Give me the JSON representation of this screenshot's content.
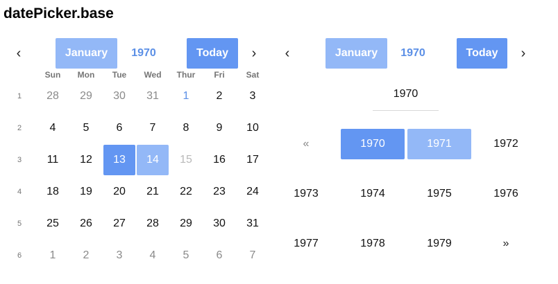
{
  "page": {
    "title": "datePicker.base"
  },
  "left": {
    "prev": "‹",
    "next": "›",
    "month": "January",
    "year": "1970",
    "today": "Today",
    "weekdays": [
      "Sun",
      "Mon",
      "Tue",
      "Wed",
      "Thur",
      "Fri",
      "Sat"
    ],
    "weeks": [
      "1",
      "2",
      "3",
      "4",
      "5",
      "6"
    ],
    "days": [
      "28",
      "29",
      "30",
      "31",
      "1",
      "2",
      "3",
      "4",
      "5",
      "6",
      "7",
      "8",
      "9",
      "10",
      "11",
      "12",
      "13",
      "14",
      "15",
      "16",
      "17",
      "18",
      "19",
      "20",
      "21",
      "22",
      "23",
      "24",
      "25",
      "26",
      "27",
      "28",
      "29",
      "30",
      "31",
      "1",
      "2",
      "3",
      "4",
      "5",
      "6",
      "7"
    ],
    "selected_day": "13",
    "range_end_day": "14",
    "disabled_day": "15"
  },
  "right": {
    "prev": "‹",
    "next": "›",
    "month": "January",
    "year": "1970",
    "today": "Today",
    "panel_year": "1970",
    "years": [
      "«",
      "1970",
      "1971",
      "1972",
      "1973",
      "1974",
      "1975",
      "1976",
      "1977",
      "1978",
      "1979",
      "»"
    ],
    "selected_year": "1970",
    "range_year": "1971"
  },
  "colors": {
    "accent": "#6396f2",
    "accent_light": "#93b8f7",
    "link": "#5b8fe6"
  }
}
